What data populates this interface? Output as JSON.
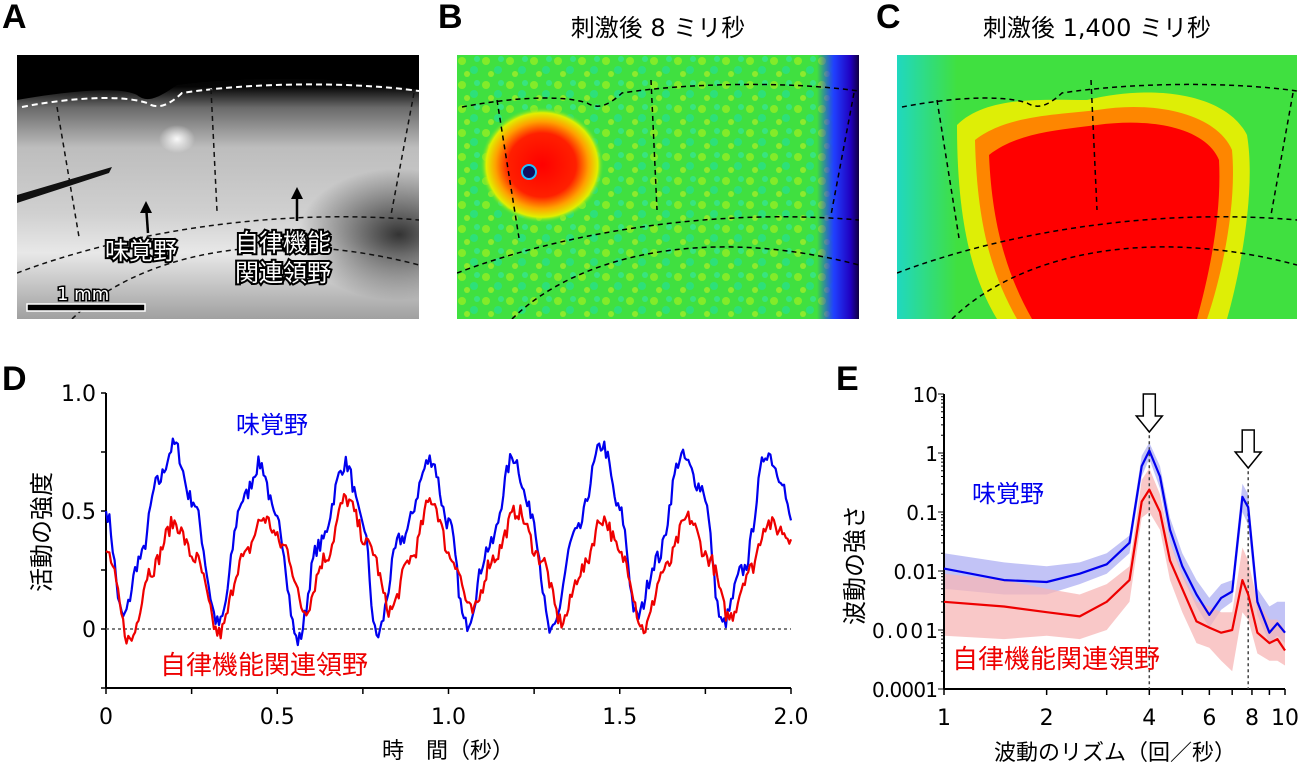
{
  "panels": {
    "A": {
      "letter": "A",
      "label_gustatory": "味覚野",
      "label_autonomic_line1": "自律機能",
      "label_autonomic_line2": "関連領野",
      "scale_bar": "1 mm"
    },
    "B": {
      "letter": "B",
      "title": "刺激後 8 ミリ秒"
    },
    "C": {
      "letter": "C",
      "title": "刺激後 1,400 ミリ秒"
    },
    "D": {
      "letter": "D"
    },
    "E": {
      "letter": "E"
    }
  },
  "colors": {
    "gustatory": "#0000ee",
    "autonomic": "#ee0000",
    "gustatory_band": "#b7b9f5",
    "autonomic_band": "#f7b6b6"
  },
  "chart_data": [
    {
      "id": "D",
      "type": "line",
      "title": "",
      "xlabel": "時　間（秒）",
      "ylabel": "活動の強度",
      "xlim": [
        0,
        2.0
      ],
      "ylim": [
        -0.25,
        1.0
      ],
      "xticks": [
        "0",
        "0.5",
        "1.0",
        "1.5",
        "2.0"
      ],
      "xtick_values": [
        0,
        0.5,
        1.0,
        1.5,
        2.0
      ],
      "yticks": [
        "0",
        "0.5",
        "1.0"
      ],
      "ytick_values": [
        0,
        0.5,
        1.0
      ],
      "reference_line": {
        "y": 0,
        "style": "dotted"
      },
      "series": [
        {
          "name": "味覚野",
          "color": "#0000ee",
          "x": [
            0,
            0.05,
            0.1,
            0.15,
            0.2,
            0.25,
            0.33,
            0.4,
            0.45,
            0.5,
            0.56,
            0.62,
            0.7,
            0.75,
            0.79,
            0.86,
            0.95,
            1.0,
            1.05,
            1.12,
            1.19,
            1.24,
            1.3,
            1.37,
            1.45,
            1.5,
            1.55,
            1.61,
            1.68,
            1.74,
            1.8,
            1.86,
            1.93,
            1.97,
            2.0
          ],
          "y": [
            0.5,
            0.05,
            0.3,
            0.62,
            0.78,
            0.55,
            0.02,
            0.55,
            0.7,
            0.45,
            -0.05,
            0.35,
            0.7,
            0.45,
            -0.03,
            0.38,
            0.72,
            0.45,
            0.02,
            0.35,
            0.73,
            0.5,
            -0.02,
            0.4,
            0.78,
            0.5,
            0.05,
            0.3,
            0.73,
            0.6,
            0.02,
            0.25,
            0.75,
            0.65,
            0.46
          ]
        },
        {
          "name": "自律機能関連領野",
          "color": "#ee0000",
          "x": [
            0,
            0.07,
            0.13,
            0.2,
            0.26,
            0.33,
            0.4,
            0.46,
            0.52,
            0.58,
            0.64,
            0.7,
            0.77,
            0.83,
            0.89,
            0.95,
            1.01,
            1.07,
            1.13,
            1.2,
            1.27,
            1.33,
            1.39,
            1.45,
            1.51,
            1.57,
            1.63,
            1.7,
            1.76,
            1.82,
            1.88,
            1.93,
            1.97,
            2.0
          ],
          "y": [
            0.33,
            -0.05,
            0.25,
            0.45,
            0.3,
            -0.02,
            0.3,
            0.47,
            0.35,
            0.08,
            0.3,
            0.55,
            0.35,
            0.08,
            0.3,
            0.55,
            0.3,
            0.07,
            0.3,
            0.5,
            0.3,
            0.03,
            0.25,
            0.47,
            0.3,
            0.0,
            0.25,
            0.47,
            0.3,
            0.05,
            0.25,
            0.45,
            0.42,
            0.38
          ]
        }
      ],
      "annotations": [
        {
          "text": "味覚野",
          "color": "#0000ee"
        },
        {
          "text": "自律機能関連領野",
          "color": "#ee0000"
        }
      ]
    },
    {
      "id": "E",
      "type": "line",
      "title": "",
      "xlabel": "波動のリズム（回／秒）",
      "ylabel": "波動の強さ",
      "xscale": "log",
      "yscale": "log",
      "xlim": [
        1,
        10
      ],
      "ylim": [
        0.0001,
        10
      ],
      "xticks": [
        "1",
        "2",
        "4",
        "6",
        "8",
        "10"
      ],
      "xtick_values": [
        1,
        2,
        4,
        6,
        8,
        10
      ],
      "yticks": [
        "0.0001",
        "0.001",
        "0.01",
        "0.1",
        "1",
        "10"
      ],
      "ytick_values": [
        0.0001,
        0.001,
        0.01,
        0.1,
        1,
        10
      ],
      "reference_lines": [
        {
          "x": 4,
          "style": "dotted"
        },
        {
          "x": 7.8,
          "style": "dotted"
        }
      ],
      "arrows_at": [
        4,
        7.8
      ],
      "series": [
        {
          "name": "味覚野",
          "color": "#0000ee",
          "x": [
            1,
            1.5,
            2,
            2.5,
            3,
            3.5,
            3.8,
            4,
            4.3,
            4.6,
            5,
            5.5,
            6,
            6.5,
            7,
            7.5,
            7.8,
            8.3,
            9,
            9.5,
            10
          ],
          "y": [
            0.011,
            0.007,
            0.0065,
            0.009,
            0.013,
            0.03,
            0.6,
            1.1,
            0.4,
            0.05,
            0.012,
            0.004,
            0.0018,
            0.0035,
            0.0045,
            0.18,
            0.12,
            0.003,
            0.0009,
            0.0013,
            0.0009
          ],
          "band_low": [
            0.005,
            0.004,
            0.004,
            0.006,
            0.009,
            0.02,
            0.4,
            0.8,
            0.25,
            0.03,
            0.008,
            0.0025,
            0.0011,
            0.0022,
            0.003,
            0.1,
            0.06,
            0.0018,
            0.0006,
            0.0008,
            0.0006
          ],
          "band_high": [
            0.02,
            0.014,
            0.012,
            0.014,
            0.02,
            0.04,
            0.9,
            1.5,
            0.6,
            0.08,
            0.02,
            0.007,
            0.0035,
            0.006,
            0.007,
            0.3,
            0.2,
            0.005,
            0.0025,
            0.003,
            0.003
          ]
        },
        {
          "name": "自律機能関連領野",
          "color": "#ee0000",
          "x": [
            1,
            1.5,
            2,
            2.5,
            3,
            3.5,
            3.8,
            4,
            4.3,
            4.6,
            5,
            5.5,
            6,
            6.5,
            7,
            7.5,
            7.8,
            8.3,
            9,
            9.5,
            10
          ],
          "y": [
            0.003,
            0.0025,
            0.002,
            0.0017,
            0.003,
            0.007,
            0.15,
            0.24,
            0.1,
            0.015,
            0.005,
            0.0014,
            0.0011,
            0.0009,
            0.001,
            0.007,
            0.004,
            0.0009,
            0.0006,
            0.0007,
            0.00045
          ],
          "band_low": [
            0.0008,
            0.0007,
            0.0008,
            0.0007,
            0.001,
            0.003,
            0.08,
            0.1,
            0.05,
            0.007,
            0.002,
            0.0006,
            0.0005,
            0.0003,
            0.0002,
            0.002,
            0.0015,
            0.0004,
            0.0003,
            0.0003,
            0.00025
          ],
          "band_high": [
            0.009,
            0.007,
            0.005,
            0.004,
            0.006,
            0.012,
            0.35,
            0.55,
            0.2,
            0.03,
            0.009,
            0.003,
            0.0025,
            0.002,
            0.002,
            0.025,
            0.015,
            0.003,
            0.0015,
            0.0015,
            0.001
          ]
        }
      ],
      "annotations": [
        {
          "text": "味覚野",
          "color": "#0000ee"
        },
        {
          "text": "自律機能関連領野",
          "color": "#ee0000"
        }
      ]
    }
  ]
}
